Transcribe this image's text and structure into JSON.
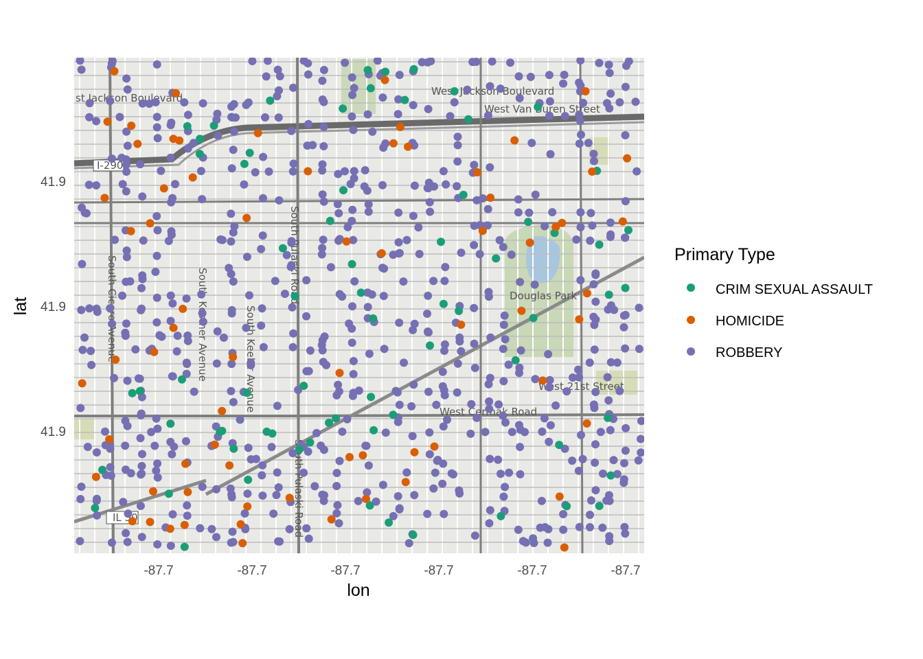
{
  "chart_data": {
    "type": "scatter",
    "title": "",
    "xlabel": "lon",
    "ylabel": "lat",
    "x_tick_labels": [
      "-87.7",
      "-87.7",
      "-87.7",
      "-87.7",
      "-87.7",
      "-87.7",
      "-87.7"
    ],
    "y_tick_labels": [
      "41.9",
      "41.9",
      "41.9"
    ],
    "legend": {
      "title": "Primary Type",
      "placement": "right",
      "entries": [
        {
          "label": "CRIM SEXUAL ASSAULT",
          "color": "#1b9e77"
        },
        {
          "label": "HOMICIDE",
          "color": "#d95f02"
        },
        {
          "label": "ROBBERY",
          "color": "#7570b3"
        }
      ]
    },
    "basemap_labels": [
      "West Jackson Boulevard",
      "West Van Buren Street",
      "Douglas Park",
      "West 21st Street",
      "West Cermak Road",
      "South Cicero Avenue",
      "South Kostner Avenue",
      "South Keeler Avenue",
      "South Pulaski Road",
      "IL 50",
      "I-290"
    ],
    "note": "Point positions approximate; axis tick labels in the original are rounded to 41.9 / -87.7"
  },
  "colors": {
    "crim": "#1b9e77",
    "homicide": "#d95f02",
    "robbery": "#7570b3",
    "water": "#a9c6df",
    "park": "#c9d8b6",
    "basemap": "#e9e9e6"
  }
}
